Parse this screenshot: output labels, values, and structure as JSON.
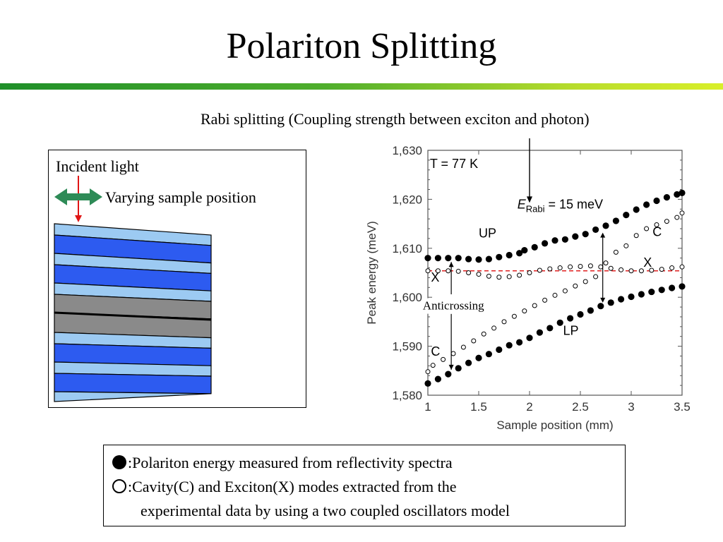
{
  "slide": {
    "title": "Polariton Splitting",
    "rabi_note": "Rabi splitting (Coupling strength between exciton and photon)"
  },
  "schematic": {
    "incident_label": "Incident light",
    "position_label": "Varying sample position",
    "colors": {
      "dark_blue": "#2d5bf0",
      "light_blue": "#9ccaf2",
      "gray": "#8a8a8a",
      "arrow_green": "#2e8b57",
      "arrow_red": "#e01515"
    }
  },
  "legend": {
    "filled_text": ":Polariton energy measured from reflectivity spectra",
    "open_line1": ":Cavity(C) and Exciton(X) modes extracted from the",
    "open_line2": "experimental data by using a two coupled oscillators model"
  },
  "chart_data": {
    "type": "scatter",
    "xlabel": "Sample position (mm)",
    "ylabel": "Peak energy (meV)",
    "xlim": [
      1,
      3.5
    ],
    "ylim": [
      1580,
      1630
    ],
    "xticks": [
      1,
      1.5,
      2,
      2.5,
      3,
      3.5
    ],
    "xtick_labels": [
      "1",
      "1.5",
      "2",
      "2.5",
      "3",
      "3.5"
    ],
    "yticks": [
      1580,
      1590,
      1600,
      1610,
      1620,
      1630
    ],
    "ytick_labels": [
      "1,580",
      "1,590",
      "1,600",
      "1,610",
      "1,620",
      "1,630"
    ],
    "temperature_label": "T = 77 K",
    "rabi_label_main": "E",
    "rabi_label_sub": "Rabi",
    "rabi_label_rest": " = 15 meV",
    "anticrossing_label": "Anticrossing",
    "exciton_reference_energy": 1605.4,
    "curve_labels": [
      {
        "text": "UP",
        "x": 1.5,
        "y": 1612.2
      },
      {
        "text": "LP",
        "x": 2.33,
        "y": 1592.3
      },
      {
        "text": "X",
        "x": 1.03,
        "y": 1603.2
      },
      {
        "text": "X",
        "x": 3.12,
        "y": 1606.2
      },
      {
        "text": "C",
        "x": 1.03,
        "y": 1588.1
      },
      {
        "text": "C",
        "x": 3.21,
        "y": 1612.5
      }
    ],
    "series": [
      {
        "marker": "filled",
        "x": [
          1.0,
          1.1,
          1.2,
          1.3,
          1.4,
          1.5,
          1.6,
          1.7,
          1.8,
          1.9,
          1.95,
          2.05,
          2.15,
          2.25,
          2.35,
          2.45,
          2.55,
          2.65,
          2.75,
          2.85,
          2.95,
          3.05,
          3.15,
          3.25,
          3.35,
          3.45,
          3.5
        ],
        "y": [
          1608.0,
          1608.0,
          1608.0,
          1608.0,
          1607.8,
          1607.7,
          1607.8,
          1608.2,
          1608.6,
          1609.0,
          1609.6,
          1610.2,
          1611.0,
          1611.6,
          1611.8,
          1612.4,
          1612.9,
          1613.8,
          1614.6,
          1615.6,
          1616.8,
          1617.9,
          1618.9,
          1619.7,
          1620.4,
          1621.0,
          1621.3
        ]
      },
      {
        "marker": "filled",
        "x": [
          1.0,
          1.1,
          1.2,
          1.3,
          1.4,
          1.5,
          1.6,
          1.7,
          1.8,
          1.9,
          2.0,
          2.1,
          2.2,
          2.3,
          2.4,
          2.5,
          2.6,
          2.7,
          2.8,
          2.9,
          3.0,
          3.1,
          3.2,
          3.3,
          3.4,
          3.5
        ],
        "y": [
          1582.4,
          1583.3,
          1584.3,
          1585.5,
          1586.6,
          1587.6,
          1588.4,
          1589.3,
          1590.2,
          1590.8,
          1591.7,
          1592.8,
          1593.7,
          1594.8,
          1595.7,
          1596.5,
          1597.3,
          1598.2,
          1598.9,
          1599.6,
          1600.1,
          1600.6,
          1601.1,
          1601.5,
          1601.9,
          1602.2
        ]
      },
      {
        "marker": "open",
        "x": [
          1.0,
          1.1,
          1.2,
          1.3,
          1.4,
          1.5,
          1.6,
          1.7,
          1.8,
          1.9,
          2.0,
          2.1,
          2.2,
          2.3,
          2.4,
          2.5,
          2.6,
          2.7,
          2.8,
          2.9,
          3.0,
          3.1,
          3.2,
          3.3,
          3.4,
          3.5
        ],
        "y": [
          1605.4,
          1605.4,
          1605.4,
          1605.3,
          1605.0,
          1604.7,
          1604.3,
          1604.1,
          1604.2,
          1604.5,
          1605.0,
          1605.5,
          1605.8,
          1606.0,
          1606.2,
          1606.3,
          1606.4,
          1606.2,
          1605.9,
          1605.6,
          1605.4,
          1605.4,
          1605.5,
          1605.7,
          1606.0,
          1606.2
        ]
      },
      {
        "marker": "open",
        "x": [
          1.0,
          1.05,
          1.15,
          1.25,
          1.35,
          1.45,
          1.55,
          1.65,
          1.75,
          1.85,
          1.95,
          2.05,
          2.15,
          2.25,
          2.35,
          2.45,
          2.55,
          2.65,
          2.75,
          2.85,
          2.95,
          3.05,
          3.15,
          3.25,
          3.35,
          3.45,
          3.5
        ],
        "y": [
          1584.8,
          1586.1,
          1587.3,
          1588.5,
          1589.8,
          1591.1,
          1592.5,
          1593.7,
          1595.0,
          1596.1,
          1597.2,
          1598.3,
          1599.4,
          1600.4,
          1601.3,
          1602.3,
          1603.2,
          1604.2,
          1607.0,
          1609.2,
          1610.5,
          1612.6,
          1614.0,
          1614.8,
          1615.5,
          1616.3,
          1617.2
        ]
      }
    ]
  }
}
